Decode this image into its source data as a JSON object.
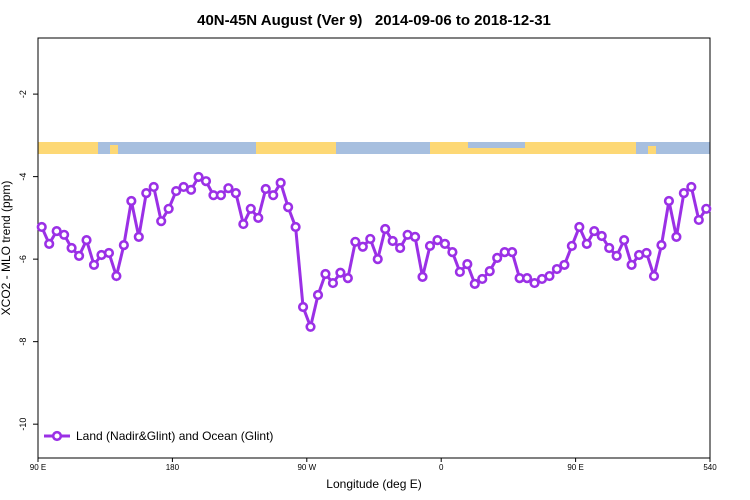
{
  "chart_data": {
    "type": "line",
    "title": "40N-45N August (Ver 9)   2014-09-06 to 2018-12-31",
    "x_label": "Longitude (deg E)",
    "y_label": "XCO2 - MLO trend (ppm)",
    "x": [
      92.5,
      97.5,
      102.5,
      107.5,
      112.5,
      117.5,
      122.5,
      127.5,
      132.5,
      137.5,
      142.5,
      147.5,
      152.5,
      157.5,
      162.5,
      167.5,
      172.5,
      177.5,
      182.5,
      187.5,
      192.5,
      197.5,
      202.5,
      207.5,
      212.5,
      217.5,
      222.5,
      227.5,
      232.5,
      237.5,
      242.5,
      247.5,
      252.5,
      257.5,
      262.5,
      267.5,
      272.5,
      277.5,
      282.5,
      287.5,
      292.5,
      297.5,
      302.5,
      307.5,
      312.5,
      317.5,
      322.5,
      327.5,
      332.5,
      337.5,
      342.5,
      347.5,
      352.5,
      357.5,
      362.5,
      367.5,
      372.5,
      377.5,
      382.5,
      387.5,
      392.5,
      397.5,
      402.5,
      407.5,
      412.5,
      417.5,
      422.5,
      427.5,
      432.5,
      437.5,
      442.5,
      447.5,
      452.5,
      457.5,
      462.5,
      467.5,
      472.5,
      477.5,
      482.5,
      487.5,
      492.5,
      497.5,
      502.5,
      507.5,
      512.5,
      517.5,
      522.5,
      527.5,
      532.5,
      537.5
    ],
    "series": [
      {
        "name": "Land (Nadir&Glint) and Ocean (Glint)",
        "color": "#9b30e6",
        "values": [
          -5.22,
          -5.63,
          -5.32,
          -5.41,
          -5.73,
          -5.92,
          -5.54,
          -6.14,
          -5.9,
          -5.85,
          -6.41,
          -5.66,
          -4.59,
          -5.46,
          -4.4,
          -4.25,
          -5.08,
          -4.78,
          -4.35,
          -4.25,
          -4.32,
          -4.01,
          -4.11,
          -4.45,
          -4.45,
          -4.28,
          -4.4,
          -5.15,
          -4.78,
          -5.0,
          -4.3,
          -4.45,
          -4.15,
          -4.74,
          -5.22,
          -7.16,
          -7.64,
          -6.87,
          -6.36,
          -6.58,
          -6.33,
          -6.46,
          -5.58,
          -5.7,
          -5.51,
          -6.0,
          -5.27,
          -5.56,
          -5.73,
          -5.41,
          -5.46,
          -6.43,
          -5.68,
          -5.54,
          -5.63,
          -5.83,
          -6.31,
          -6.12,
          -6.6,
          -6.48,
          -6.29,
          -5.97,
          -5.83,
          -5.83,
          -6.46,
          -6.46,
          -6.58,
          -6.48,
          -6.41,
          -6.24,
          -6.14,
          -5.68,
          -5.22,
          -5.63,
          -5.32,
          -5.44,
          -5.73,
          -5.92,
          -5.54,
          -6.14,
          -5.9,
          -5.85,
          -6.41,
          -5.66,
          -4.59,
          -5.46,
          -4.4,
          -4.25,
          -5.05,
          -4.78
        ]
      }
    ],
    "xlim": [
      90,
      540
    ],
    "xticks": [
      {
        "value": 90,
        "label": "90 E"
      },
      180,
      {
        "value": 270,
        "label": "90 W"
      },
      {
        "value": 360,
        "label": "0"
      },
      {
        "value": 450,
        "label": "90 E"
      },
      540
    ],
    "ylim": [
      -10.82,
      -0.64
    ],
    "yticks": [
      -10,
      -8,
      -6,
      -4,
      -2
    ],
    "legend": "bottom-left"
  }
}
